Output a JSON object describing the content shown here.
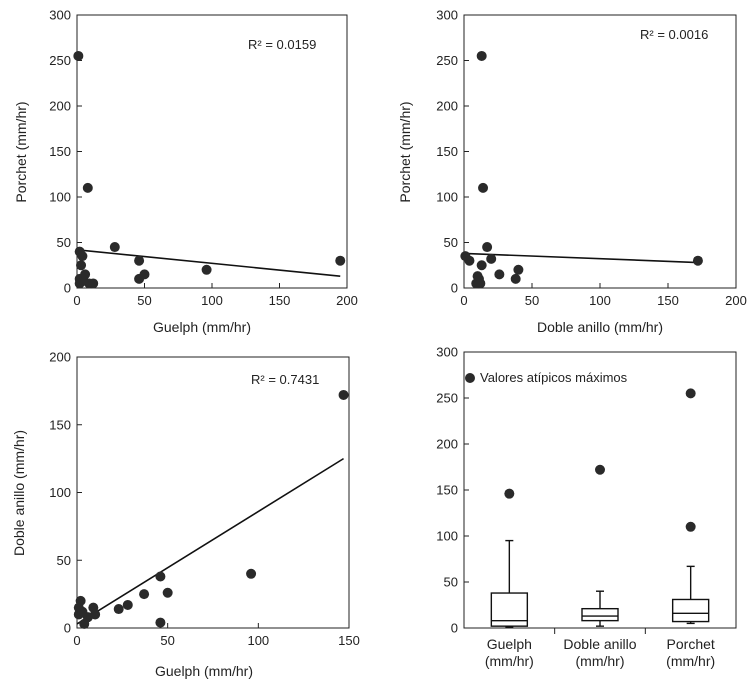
{
  "chart_data": [
    {
      "id": "p1",
      "type": "scatter",
      "xlabel": "Guelph (mm/hr)",
      "ylabel": "Porchet (mm/hr)",
      "xlim": [
        0,
        200
      ],
      "ylim": [
        0,
        300
      ],
      "xticks": [
        0,
        50,
        100,
        150,
        200
      ],
      "yticks": [
        0,
        50,
        100,
        150,
        200,
        250,
        300
      ],
      "annotation": "R² = 0.0159",
      "fit": [
        [
          0,
          42
        ],
        [
          195,
          13
        ]
      ],
      "points": [
        [
          1,
          255
        ],
        [
          2,
          40
        ],
        [
          2,
          10
        ],
        [
          3,
          25
        ],
        [
          4,
          35
        ],
        [
          2,
          5
        ],
        [
          5,
          8
        ],
        [
          6,
          15
        ],
        [
          8,
          110
        ],
        [
          9,
          5
        ],
        [
          12,
          5
        ],
        [
          28,
          45
        ],
        [
          46,
          30
        ],
        [
          46,
          10
        ],
        [
          50,
          15
        ],
        [
          96,
          20
        ],
        [
          195,
          30
        ]
      ]
    },
    {
      "id": "p2",
      "type": "scatter",
      "xlabel": "Doble anillo (mm/hr)",
      "ylabel": "Porchet (mm/hr)",
      "xlim": [
        0,
        200
      ],
      "ylim": [
        0,
        300
      ],
      "xticks": [
        0,
        50,
        100,
        150,
        200
      ],
      "yticks": [
        0,
        50,
        100,
        150,
        200,
        250,
        300
      ],
      "annotation": "R² = 0.0016",
      "fit": [
        [
          0,
          38
        ],
        [
          172,
          28
        ]
      ],
      "points": [
        [
          1,
          35
        ],
        [
          4,
          30
        ],
        [
          9,
          5
        ],
        [
          10,
          13
        ],
        [
          11,
          10
        ],
        [
          12,
          5
        ],
        [
          13,
          255
        ],
        [
          13,
          25
        ],
        [
          14,
          110
        ],
        [
          17,
          45
        ],
        [
          20,
          32
        ],
        [
          26,
          15
        ],
        [
          38,
          10
        ],
        [
          40,
          20
        ],
        [
          172,
          30
        ]
      ]
    },
    {
      "id": "p3",
      "type": "scatter",
      "xlabel": "Guelph (mm/hr)",
      "ylabel": "Doble anillo (mm/hr)",
      "xlim": [
        0,
        150
      ],
      "ylim": [
        0,
        200
      ],
      "xticks": [
        0,
        50,
        100,
        150
      ],
      "yticks": [
        0,
        50,
        100,
        150,
        200
      ],
      "annotation": "R² = 0.7431",
      "fit": [
        [
          0,
          3
        ],
        [
          147,
          125
        ]
      ],
      "points": [
        [
          1,
          10
        ],
        [
          1,
          15
        ],
        [
          2,
          20
        ],
        [
          3,
          12
        ],
        [
          4,
          3
        ],
        [
          6,
          8
        ],
        [
          9,
          15
        ],
        [
          10,
          10
        ],
        [
          23,
          14
        ],
        [
          28,
          17
        ],
        [
          37,
          25
        ],
        [
          46,
          4
        ],
        [
          46,
          38
        ],
        [
          50,
          26
        ],
        [
          96,
          40
        ],
        [
          147,
          172
        ]
      ]
    },
    {
      "id": "p4",
      "type": "box",
      "ylim": [
        0,
        300
      ],
      "yticks": [
        0,
        50,
        100,
        150,
        200,
        250,
        300
      ],
      "legend": "Valores atípicos máximos",
      "categories": [
        "Guelph\n(mm/hr)",
        "Doble anillo\n(mm/hr)",
        "Porchet\n(mm/hr)"
      ],
      "boxes": [
        {
          "label_top": "Guelph",
          "label_bottom": "(mm/hr)",
          "min": 1,
          "q1": 2,
          "median": 8,
          "q3": 38,
          "max": 95,
          "outliers": [
            146
          ]
        },
        {
          "label_top": "Doble anillo",
          "label_bottom": "(mm/hr)",
          "min": 2,
          "q1": 8,
          "median": 13,
          "q3": 21,
          "max": 40,
          "outliers": [
            172
          ]
        },
        {
          "label_top": "Porchet",
          "label_bottom": "(mm/hr)",
          "min": 5,
          "q1": 7,
          "median": 16,
          "q3": 31,
          "max": 67,
          "outliers": [
            110,
            255
          ]
        }
      ]
    }
  ]
}
